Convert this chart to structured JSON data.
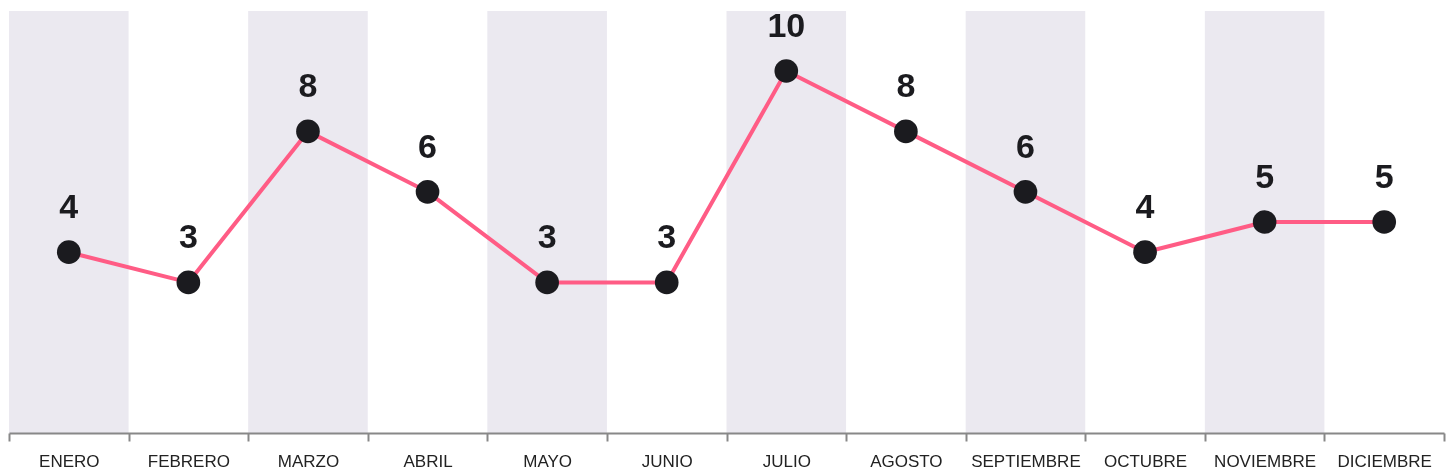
{
  "chart_data": {
    "type": "line",
    "categories": [
      "ENERO",
      "FEBRERO",
      "MARZO",
      "ABRIL",
      "MAYO",
      "JUNIO",
      "JULIO",
      "AGOSTO",
      "SEPTIEMBRE",
      "OCTUBRE",
      "NOVIEMBRE",
      "DICIEMBRE"
    ],
    "series": [
      {
        "color": "#ff5c85",
        "values": [
          4,
          3,
          8,
          6,
          3,
          3,
          10,
          8,
          6,
          4,
          5,
          5
        ]
      }
    ],
    "data_labels": true,
    "marker": "circle",
    "line_style": "solid",
    "bands": [
      {
        "axis": "x",
        "from": "ENERO",
        "to": "ENERO",
        "color": "#ebe9f0"
      },
      {
        "axis": "x",
        "from": "MARZO",
        "to": "MARZO",
        "color": "#ebe9f0"
      },
      {
        "axis": "x",
        "from": "MAYO",
        "to": "MAYO",
        "color": "#ebe9f0"
      },
      {
        "axis": "x",
        "from": "JULIO",
        "to": "JULIO",
        "color": "#ebe9f0"
      },
      {
        "axis": "x",
        "from": "SEPTIEMBRE",
        "to": "SEPTIEMBRE",
        "color": "#ebe9f0"
      },
      {
        "axis": "x",
        "from": "NOVIEMBRE",
        "to": "NOVIEMBRE",
        "color": "#ebe9f0"
      }
    ]
  }
}
